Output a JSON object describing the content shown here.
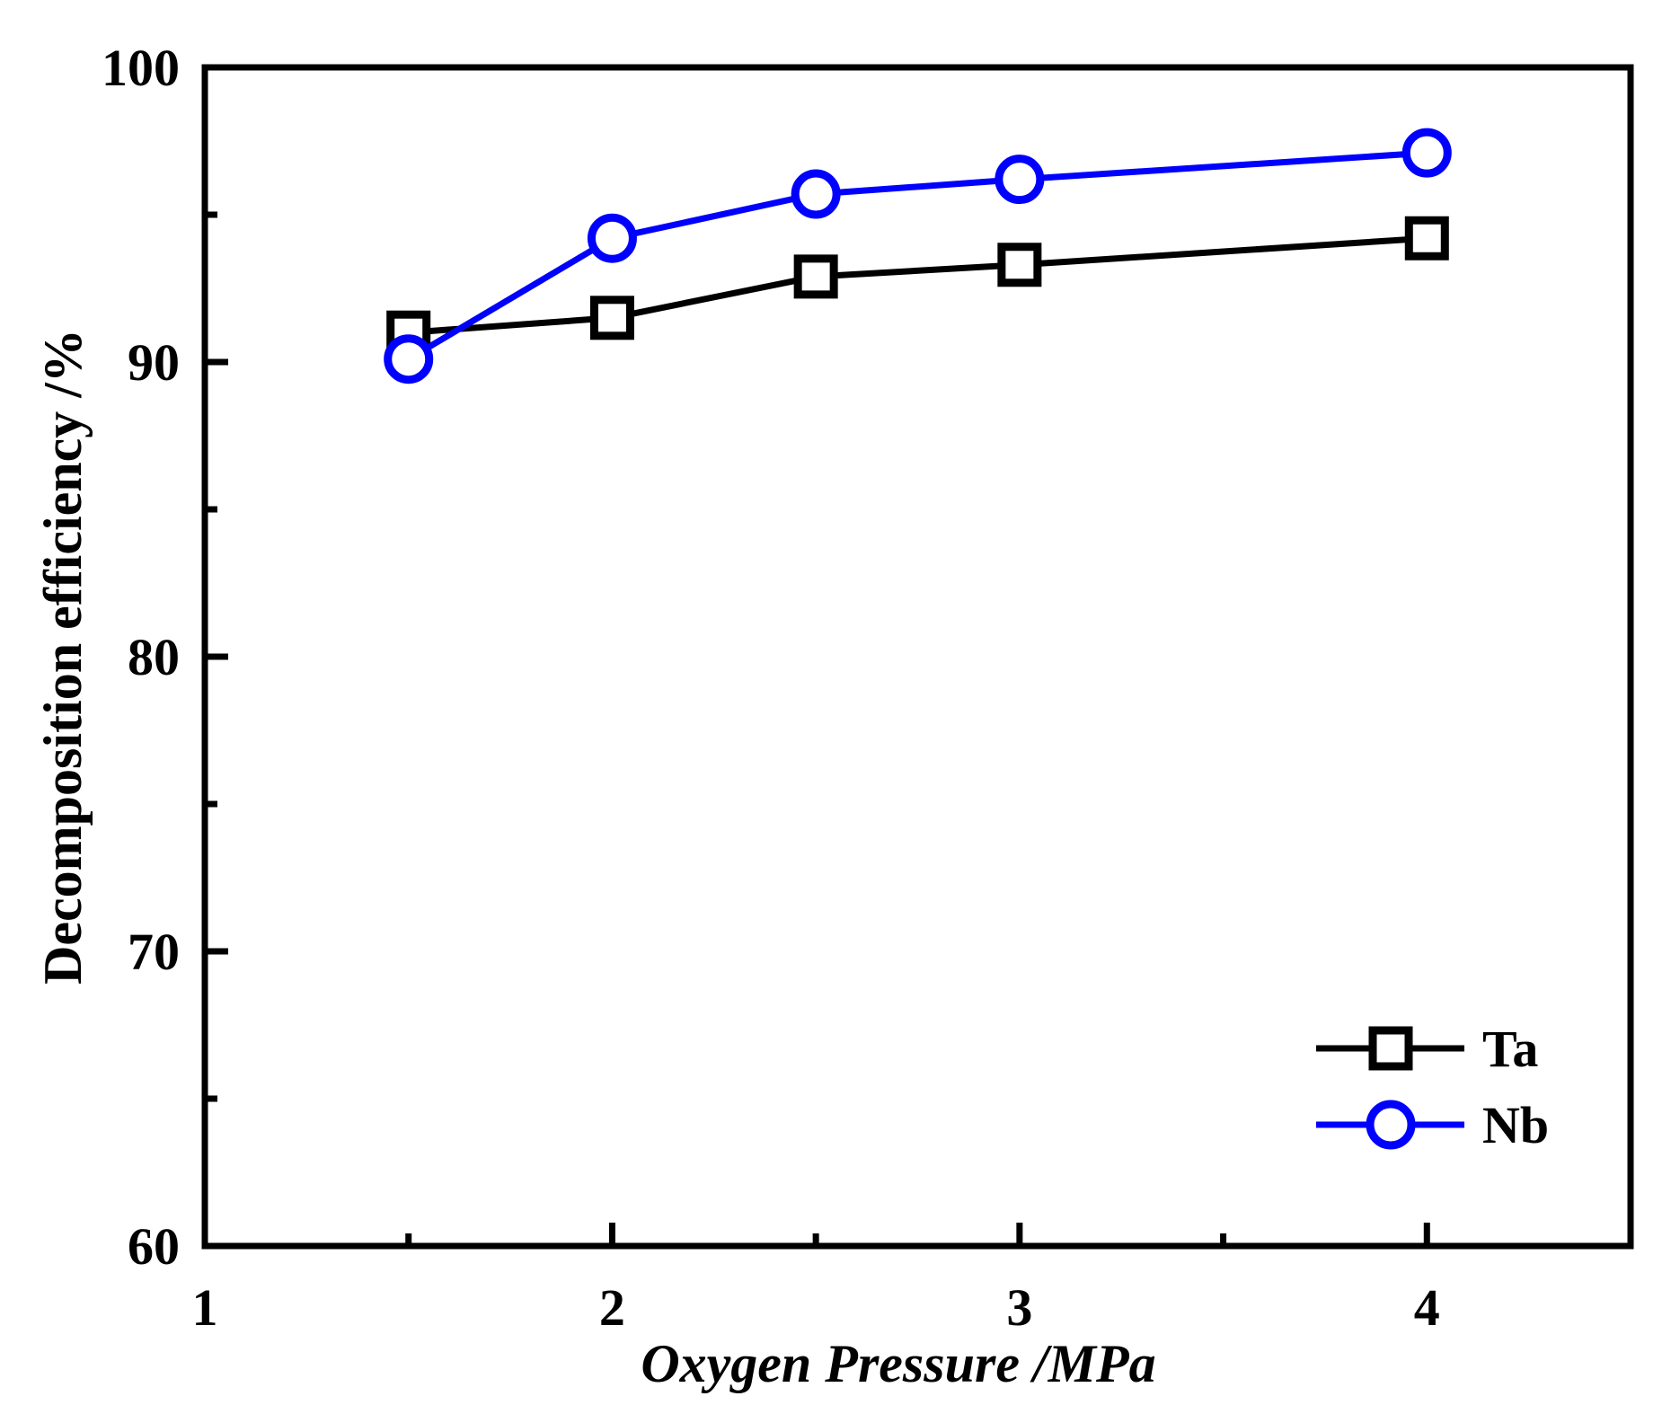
{
  "chart_data": {
    "type": "line",
    "xlabel": "Oxygen Pressure /MPa",
    "ylabel": "Decomposition efficiency /%",
    "xlim": [
      1,
      4.5
    ],
    "ylim": [
      60,
      100
    ],
    "x_ticks": [
      1,
      2,
      3,
      4
    ],
    "x_minor_ticks": [
      1.5,
      2.5,
      3.5
    ],
    "y_ticks": [
      60,
      70,
      80,
      90,
      100
    ],
    "y_minor_ticks": [
      65,
      75,
      85,
      95
    ],
    "grid": false,
    "legend_position": "bottom-right",
    "series": [
      {
        "name": "Ta",
        "marker": "square",
        "color": "#000000",
        "x": [
          1.5,
          2,
          2.5,
          3,
          4
        ],
        "y": [
          91.0,
          91.5,
          92.9,
          93.3,
          94.2
        ]
      },
      {
        "name": "Nb",
        "marker": "circle",
        "color": "#0000ff",
        "x": [
          1.5,
          2,
          2.5,
          3,
          4
        ],
        "y": [
          90.1,
          94.2,
          95.7,
          96.2,
          97.1
        ]
      }
    ]
  }
}
